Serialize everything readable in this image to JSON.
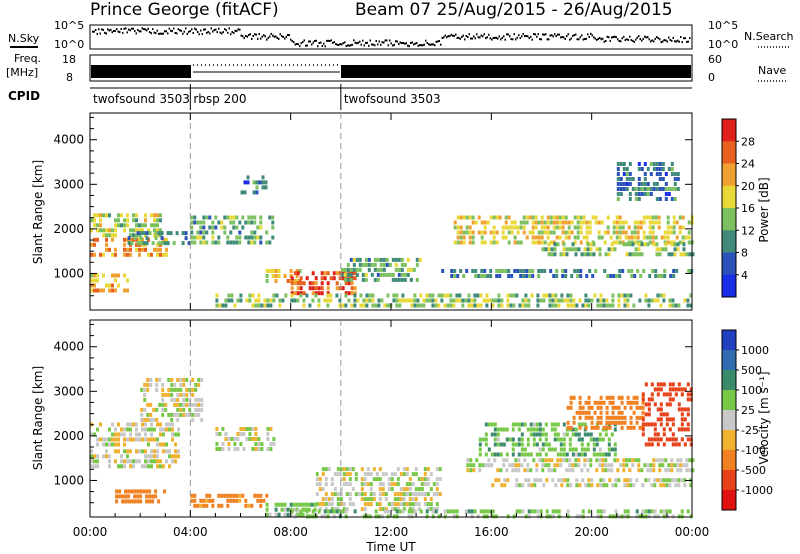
{
  "header": {
    "title": "Prince George (fitACF)",
    "beam_date": "Beam 07 25/Aug/2015 - 26/Aug/2015"
  },
  "panels": {
    "nsky_label": "N.Sky",
    "nsky_scale_top": "10^5",
    "nsky_scale_bottom": "10^0",
    "nsearch_label": "N.Search",
    "nsearch_scale_top": "10^5",
    "nsearch_scale_bottom": "10^0",
    "freq_label": "Freq.",
    "freq_unit": "[MHz]",
    "freq_top": "18",
    "freq_bottom": "8",
    "nave_label": "Nave",
    "nave_top": "60",
    "nave_bottom": "0",
    "cpid_label": "CPID",
    "cpid_segments": [
      {
        "label": "twofsound 3503",
        "start": 0,
        "end": 4
      },
      {
        "label": "rbsp 200",
        "start": 4,
        "end": 10
      },
      {
        "label": "twofsound 3503",
        "start": 10,
        "end": 24
      }
    ]
  },
  "colorbars": {
    "power": {
      "label": "Power [dB]",
      "ticks": [
        "4",
        "8",
        "12",
        "16",
        "20",
        "24",
        "28"
      ],
      "colors": [
        "#1a2ee6",
        "#2b52b8",
        "#3f8a7a",
        "#7cc060",
        "#e8d838",
        "#f0a030",
        "#e86020",
        "#e02018"
      ]
    },
    "velocity": {
      "label": "Velocity [m s⁻¹]",
      "ticks": [
        "1000",
        "500",
        "100",
        "25",
        "-25",
        "-100",
        "-500",
        "-1000"
      ],
      "colors": [
        "#2040c0",
        "#2f6db0",
        "#3a8a6c",
        "#78c848",
        "#c8c8c8",
        "#f0b030",
        "#f08020",
        "#e84018",
        "#e01010"
      ]
    }
  },
  "chart_data": {
    "type": "heatmap",
    "xlabel": "Time UT",
    "x_ticks": [
      "00:00",
      "04:00",
      "08:00",
      "12:00",
      "16:00",
      "20:00",
      "00:00"
    ],
    "xlim_hours": [
      0,
      24
    ],
    "ylabel": "Slant Range [km]",
    "y_ticks": [
      1000,
      2000,
      3000,
      4000
    ],
    "ylim": [
      180,
      4600
    ],
    "cpid_changes_hours": [
      4,
      10
    ],
    "panels": [
      {
        "quantity": "Power",
        "unit": "dB",
        "regions": [
          {
            "t": [
              0.0,
              2.8
            ],
            "r": [
              1900,
              2350
            ],
            "v": 16
          },
          {
            "t": [
              0.0,
              3.0
            ],
            "r": [
              1450,
              1800
            ],
            "v": 22
          },
          {
            "t": [
              0.0,
              1.5
            ],
            "r": [
              650,
              1000
            ],
            "v": 20
          },
          {
            "t": [
              1.5,
              4.0
            ],
            "r": [
              1700,
              1950
            ],
            "v": 10
          },
          {
            "t": [
              4.0,
              7.3
            ],
            "r": [
              1650,
              2300
            ],
            "v": 12
          },
          {
            "t": [
              6.0,
              7.0
            ],
            "r": [
              2800,
              3200
            ],
            "v": 8
          },
          {
            "t": [
              7.0,
              8.5
            ],
            "r": [
              800,
              1100
            ],
            "v": 20
          },
          {
            "t": [
              8.0,
              10.6
            ],
            "r": [
              550,
              1050
            ],
            "v": 27
          },
          {
            "t": [
              10.0,
              13.2
            ],
            "r": [
              900,
              1350
            ],
            "v": 12
          },
          {
            "t": [
              5.0,
              24.0
            ],
            "r": [
              250,
              550
            ],
            "v": 14
          },
          {
            "t": [
              14.5,
              24.0
            ],
            "r": [
              1700,
              2300
            ],
            "v": 18
          },
          {
            "t": [
              18.0,
              24.0
            ],
            "r": [
              1400,
              1700
            ],
            "v": 14
          },
          {
            "t": [
              14.0,
              24.0
            ],
            "r": [
              900,
              1100
            ],
            "v": 10
          },
          {
            "t": [
              21.0,
              23.5
            ],
            "r": [
              2700,
              3500
            ],
            "v": 8
          }
        ]
      },
      {
        "quantity": "Velocity",
        "unit": "m s-1",
        "regions": [
          {
            "t": [
              0.0,
              3.5
            ],
            "r": [
              1800,
              2300
            ],
            "v": 0
          },
          {
            "t": [
              0.0,
              3.5
            ],
            "r": [
              1300,
              1700
            ],
            "v": 0
          },
          {
            "t": [
              2.0,
              4.5
            ],
            "r": [
              2300,
              3300
            ],
            "v": 0
          },
          {
            "t": [
              1.0,
              3.0
            ],
            "r": [
              500,
              800
            ],
            "v": -200
          },
          {
            "t": [
              4.0,
              7.0
            ],
            "r": [
              400,
              700
            ],
            "v": -150
          },
          {
            "t": [
              5.0,
              7.3
            ],
            "r": [
              1700,
              2200
            ],
            "v": 0
          },
          {
            "t": [
              7.0,
              9.0
            ],
            "r": [
              250,
              500
            ],
            "v": 60
          },
          {
            "t": [
              9.0,
              14.0
            ],
            "r": [
              400,
              1300
            ],
            "v": 0
          },
          {
            "t": [
              8.0,
              24.0
            ],
            "r": [
              200,
              350
            ],
            "v": 50
          },
          {
            "t": [
              15.5,
              21.0
            ],
            "r": [
              1600,
              2300
            ],
            "v": 80
          },
          {
            "t": [
              19.0,
              22.0
            ],
            "r": [
              2200,
              2900
            ],
            "v": -400
          },
          {
            "t": [
              22.0,
              24.0
            ],
            "r": [
              1800,
              3200
            ],
            "v": -700
          },
          {
            "t": [
              15.0,
              24.0
            ],
            "r": [
              1200,
              1500
            ],
            "v": 0
          },
          {
            "t": [
              16.0,
              24.0
            ],
            "r": [
              850,
              1050
            ],
            "v": 0
          }
        ]
      }
    ]
  }
}
